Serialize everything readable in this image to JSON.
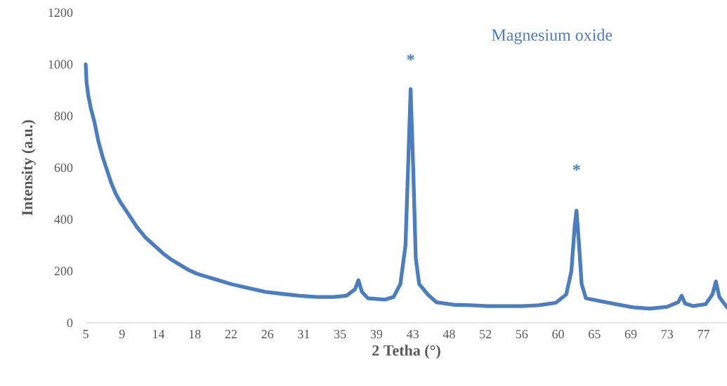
{
  "chart_data": {
    "type": "line",
    "xlabel": "2 Tetha (°)",
    "ylabel": "Intensity (a.u.)",
    "xlim": [
      5,
      80
    ],
    "ylim": [
      0,
      1200
    ],
    "xticks": [
      {
        "value": 5,
        "label": "5"
      },
      {
        "value": 9.25,
        "label": "9"
      },
      {
        "value": 13.5,
        "label": "14"
      },
      {
        "value": 17.75,
        "label": "18"
      },
      {
        "value": 22,
        "label": "22"
      },
      {
        "value": 26.25,
        "label": "26"
      },
      {
        "value": 30.5,
        "label": "31"
      },
      {
        "value": 34.75,
        "label": "35"
      },
      {
        "value": 39,
        "label": "39"
      },
      {
        "value": 43.25,
        "label": "43"
      },
      {
        "value": 47.5,
        "label": "48"
      },
      {
        "value": 51.75,
        "label": "52"
      },
      {
        "value": 56,
        "label": "56"
      },
      {
        "value": 60.25,
        "label": "60"
      },
      {
        "value": 64.5,
        "label": "65"
      },
      {
        "value": 68.75,
        "label": "69"
      },
      {
        "value": 73,
        "label": "73"
      },
      {
        "value": 77.25,
        "label": "77"
      }
    ],
    "yticks": [
      0,
      200,
      400,
      600,
      800,
      1000,
      1200
    ],
    "grid": false,
    "series": [
      {
        "name": "Magnesium oxide",
        "color": "#4a7ebf",
        "x": [
          5,
          5.1,
          5.3,
          5.6,
          6,
          6.5,
          7,
          7.5,
          8,
          8.5,
          9,
          10,
          11,
          12,
          13,
          14,
          15,
          16,
          17,
          18,
          19,
          20,
          22,
          24,
          26,
          28,
          30,
          32,
          34,
          35.5,
          36.5,
          36.9,
          37.3,
          38,
          40,
          41,
          41.8,
          42.4,
          42.7,
          43.0,
          43.3,
          43.6,
          44,
          45,
          46,
          48,
          50,
          52,
          54,
          56,
          58,
          60,
          61.2,
          61.8,
          62.2,
          62.4,
          62.7,
          63.0,
          63.5,
          65,
          67,
          69,
          71,
          73,
          74.3,
          74.7,
          75.1,
          76,
          77.5,
          78.3,
          78.7,
          79.1,
          80
        ],
        "values": [
          1000,
          930,
          880,
          830,
          780,
          700,
          640,
          590,
          540,
          500,
          470,
          420,
          370,
          330,
          300,
          270,
          245,
          225,
          205,
          190,
          180,
          170,
          150,
          135,
          120,
          112,
          105,
          100,
          100,
          105,
          130,
          165,
          120,
          95,
          90,
          100,
          150,
          300,
          600,
          904,
          600,
          250,
          150,
          110,
          80,
          70,
          68,
          65,
          65,
          65,
          68,
          78,
          110,
          200,
          380,
          434,
          300,
          150,
          95,
          85,
          72,
          60,
          55,
          62,
          80,
          105,
          75,
          65,
          72,
          110,
          160,
          100,
          60
        ]
      }
    ],
    "annotations": [
      {
        "text": "*",
        "x": 43.0,
        "y": 904
      },
      {
        "text": "*",
        "x": 62.4,
        "y": 434
      }
    ]
  }
}
